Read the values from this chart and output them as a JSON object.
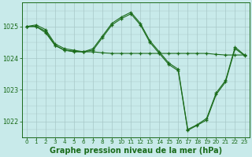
{
  "bg_color": "#c8eaea",
  "line_color": "#1a6b1a",
  "grid_color": "#a8c8c8",
  "xlabel": "Graphe pression niveau de la mer (hPa)",
  "xlabel_fontsize": 7.0,
  "ylim": [
    1021.5,
    1025.75
  ],
  "xlim": [
    -0.5,
    23.5
  ],
  "yticks": [
    1022,
    1023,
    1024,
    1025
  ],
  "xticks": [
    0,
    1,
    2,
    3,
    4,
    5,
    6,
    7,
    8,
    9,
    10,
    11,
    12,
    13,
    14,
    15,
    16,
    17,
    18,
    19,
    20,
    21,
    22,
    23
  ],
  "series": [
    {
      "x": [
        0,
        1,
        2,
        3,
        4,
        5,
        6,
        7,
        8,
        9,
        10,
        11,
        12,
        13,
        14,
        15,
        16,
        17,
        18,
        19,
        20,
        21,
        22,
        23
      ],
      "y": [
        1025.0,
        1025.05,
        1024.9,
        1024.45,
        1024.3,
        1024.25,
        1024.2,
        1024.3,
        1024.7,
        1025.1,
        1025.3,
        1025.45,
        1025.1,
        1024.55,
        1024.2,
        1023.85,
        1023.65,
        1021.75,
        1021.9,
        1022.1,
        1022.9,
        1023.3,
        1024.35,
        1024.1
      ]
    },
    {
      "x": [
        0,
        1,
        2,
        3,
        4,
        5,
        6,
        7,
        8,
        9,
        10,
        11,
        12,
        13,
        14,
        15,
        16,
        17,
        18,
        19,
        20,
        21,
        22,
        23
      ],
      "y": [
        1025.0,
        1025.0,
        1024.85,
        1024.4,
        1024.25,
        1024.22,
        1024.2,
        1024.2,
        1024.17,
        1024.15,
        1024.15,
        1024.15,
        1024.15,
        1024.15,
        1024.15,
        1024.15,
        1024.15,
        1024.15,
        1024.15,
        1024.15,
        1024.12,
        1024.1,
        1024.1,
        1024.1
      ]
    },
    {
      "x": [
        0,
        1,
        2,
        3,
        4,
        5,
        6,
        7,
        8,
        9,
        10,
        11,
        12,
        13,
        14,
        15,
        16,
        17,
        18,
        19,
        20,
        21,
        22,
        23
      ],
      "y": [
        1025.0,
        1025.0,
        1024.8,
        1024.4,
        1024.25,
        1024.2,
        1024.2,
        1024.25,
        1024.65,
        1025.05,
        1025.25,
        1025.4,
        1025.05,
        1024.5,
        1024.15,
        1023.8,
        1023.6,
        1021.72,
        1021.88,
        1022.05,
        1022.85,
        1023.25,
        1024.3,
        1024.08
      ]
    }
  ]
}
